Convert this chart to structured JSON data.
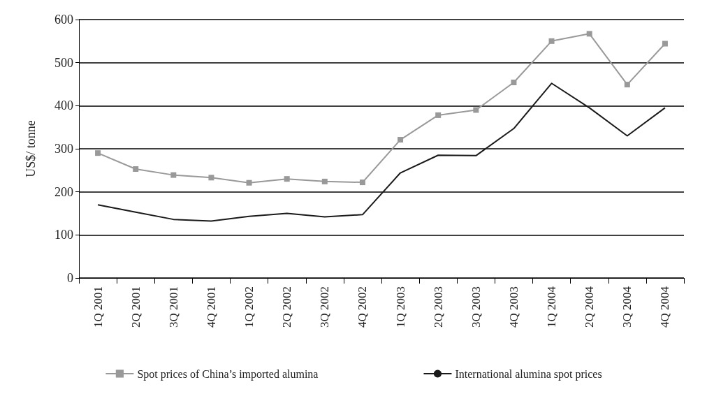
{
  "chart_data": {
    "type": "line",
    "ylabel": "US$/ tonne",
    "categories": [
      "1Q 2001",
      "2Q 2001",
      "3Q 2001",
      "4Q 2001",
      "1Q 2002",
      "2Q 2002",
      "3Q 2002",
      "4Q 2002",
      "1Q 2003",
      "2Q 2003",
      "3Q 2003",
      "4Q 2003",
      "1Q 2004",
      "2Q 2004",
      "3Q 2004",
      "4Q 2004"
    ],
    "series": [
      {
        "name": "Spot prices of China’s imported alumina",
        "color": "#999999",
        "marker": "square",
        "values": [
          290,
          253,
          239,
          233,
          221,
          230,
          224,
          222,
          321,
          378,
          390,
          454,
          550,
          567,
          449,
          544
        ]
      },
      {
        "name": "International alumina spot prices",
        "color": "#1a1a1a",
        "marker": "none",
        "values": [
          170,
          153,
          136,
          132,
          143,
          150,
          142,
          147,
          244,
          285,
          284,
          347,
          452,
          395,
          330,
          395
        ]
      }
    ],
    "ylim": [
      0,
      600
    ],
    "yticks": [
      0,
      100,
      200,
      300,
      400,
      500,
      600
    ],
    "grid": "y",
    "legend": "bottom"
  }
}
